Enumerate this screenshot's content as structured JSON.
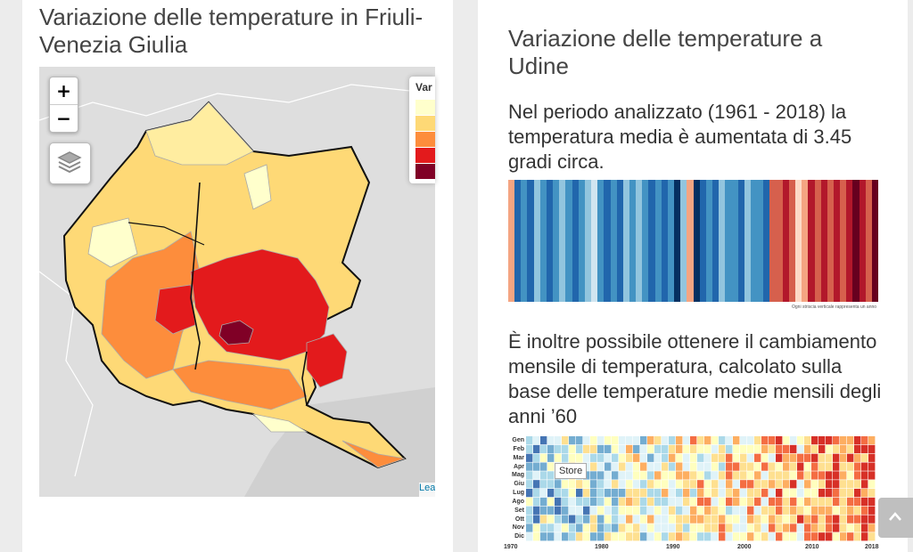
{
  "left_panel": {
    "title": "Variazione delle temperature in Friuli-Venezia Giulia",
    "map": {
      "zoom_in_label": "+",
      "zoom_out_label": "−",
      "legend_title": "Var",
      "legend_colors": [
        "#ffffcc",
        "#fed976",
        "#fd8d3c",
        "#e31a1c",
        "#800026"
      ],
      "attribution_label": "Leaflet"
    }
  },
  "right_panel": {
    "title": "Variazione delle temperature a Udine",
    "paragraph_1": "Nel periodo analizzato (1961 - 2018) la temperatura media è aumentata di 3.45 gradi circa.",
    "stripes_note": "Ogni striscia verticale rappresenta un anno",
    "paragraph_2": "È inoltre possibile ottenere il cambiamento mensile di temperatura, calcolato sulla base delle temperature medie mensili degli anni ’60",
    "heatmap": {
      "months": [
        "Gen",
        "Feb",
        "Mar",
        "Apr",
        "Mag",
        "Giu",
        "Lug",
        "Ago",
        "Set",
        "Ott",
        "Nov",
        "Dic"
      ],
      "year_labels": [
        "1970",
        "1980",
        "1990",
        "2000",
        "2010",
        "2018"
      ],
      "tooltip": "Store"
    }
  },
  "scroll_top_button": "scroll-to-top"
}
